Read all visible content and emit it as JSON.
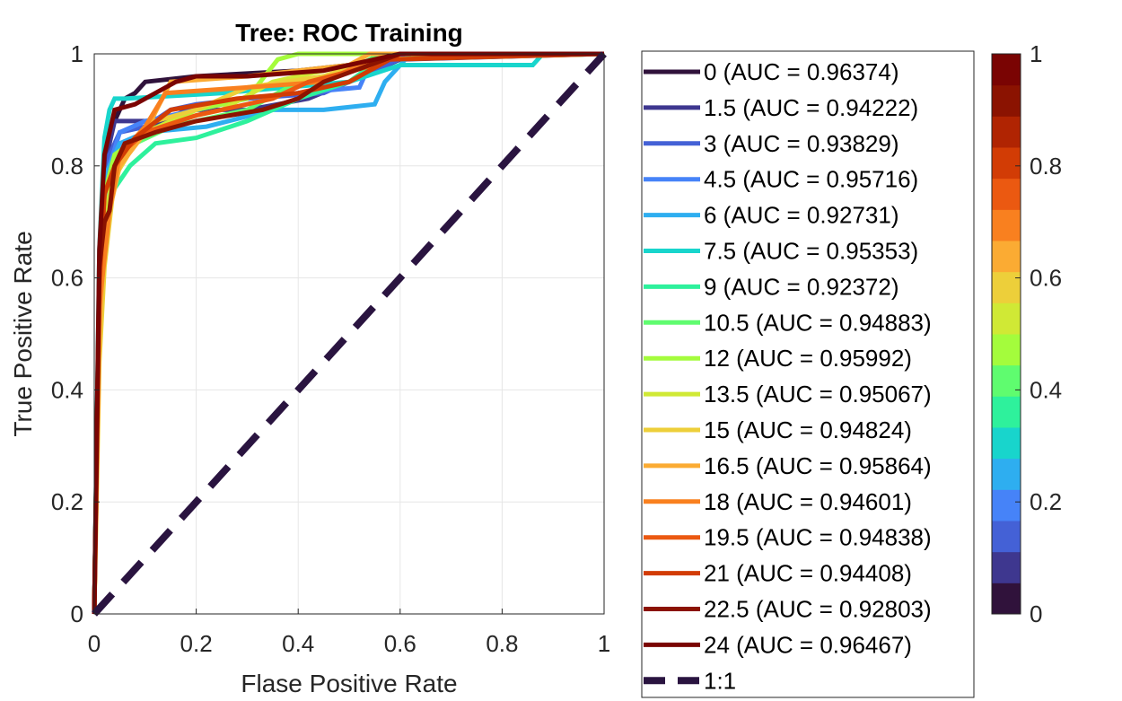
{
  "chart_data": {
    "type": "line",
    "title": "Tree: ROC Training",
    "xlabel": "Flase Positive Rate",
    "ylabel": "True Positive Rate",
    "xlim": [
      0,
      1
    ],
    "ylim": [
      0,
      1
    ],
    "xticks": [
      "0",
      "0.2",
      "0.4",
      "0.6",
      "0.8",
      "1"
    ],
    "yticks": [
      "0",
      "0.2",
      "0.4",
      "0.6",
      "0.8",
      "1"
    ],
    "grid": true,
    "legend_position": "right",
    "colorbar": {
      "ticks": [
        "0",
        "0.2",
        "0.4",
        "0.6",
        "0.8",
        "1"
      ],
      "colors": [
        "#30123b",
        "#3e378f",
        "#4461d6",
        "#4683f8",
        "#2eaef0",
        "#18d5cc",
        "#2ef19c",
        "#5ffc6f",
        "#a4fc3c",
        "#d0e935",
        "#edcf3a",
        "#fbab33",
        "#f9801f",
        "#eb5911",
        "#d23c05",
        "#b02402",
        "#8b1301",
        "#7a0403"
      ]
    },
    "series": [
      {
        "name": "0 (AUC = 0.96374)",
        "color": "#30123b",
        "x": [
          0,
          0.01,
          0.02,
          0.04,
          0.06,
          0.08,
          0.1,
          0.2,
          0.4,
          0.6,
          0.8,
          1
        ],
        "y": [
          0,
          0.6,
          0.83,
          0.88,
          0.92,
          0.93,
          0.95,
          0.96,
          0.97,
          0.99,
          1,
          1
        ]
      },
      {
        "name": "1.5 (AUC = 0.94222)",
        "color": "#3e378f",
        "x": [
          0,
          0.01,
          0.02,
          0.04,
          0.1,
          0.12,
          0.18,
          0.3,
          0.42,
          0.5,
          0.6,
          1
        ],
        "y": [
          0,
          0.55,
          0.8,
          0.88,
          0.88,
          0.87,
          0.9,
          0.9,
          0.92,
          0.95,
          0.99,
          1
        ]
      },
      {
        "name": "3 (AUC = 0.93829)",
        "color": "#4461d6",
        "x": [
          0,
          0.01,
          0.03,
          0.05,
          0.1,
          0.15,
          0.2,
          0.3,
          0.45,
          0.55,
          0.62,
          1
        ],
        "y": [
          0,
          0.6,
          0.82,
          0.86,
          0.87,
          0.9,
          0.91,
          0.92,
          0.93,
          0.97,
          1,
          1
        ]
      },
      {
        "name": "4.5 (AUC = 0.95716)",
        "color": "#4683f8",
        "x": [
          0,
          0.01,
          0.03,
          0.05,
          0.1,
          0.2,
          0.3,
          0.4,
          0.52,
          0.54,
          0.56,
          1
        ],
        "y": [
          0,
          0.62,
          0.8,
          0.86,
          0.88,
          0.9,
          0.92,
          0.93,
          0.94,
          0.98,
          1,
          1
        ]
      },
      {
        "name": "6 (AUC = 0.92731)",
        "color": "#2eaef0",
        "x": [
          0,
          0.01,
          0.02,
          0.05,
          0.1,
          0.22,
          0.35,
          0.45,
          0.55,
          0.57,
          0.62,
          1
        ],
        "y": [
          0,
          0.6,
          0.78,
          0.84,
          0.86,
          0.87,
          0.9,
          0.9,
          0.91,
          0.95,
          1,
          1
        ]
      },
      {
        "name": "7.5 (AUC = 0.95353)",
        "color": "#18d5cc",
        "x": [
          0,
          0.01,
          0.02,
          0.03,
          0.04,
          0.06,
          0.25,
          0.5,
          0.6,
          0.86,
          0.88,
          1
        ],
        "y": [
          0,
          0.65,
          0.85,
          0.9,
          0.92,
          0.92,
          0.93,
          0.95,
          0.98,
          0.98,
          1,
          1
        ]
      },
      {
        "name": "9 (AUC = 0.92372)",
        "color": "#2ef19c",
        "x": [
          0,
          0.01,
          0.02,
          0.04,
          0.07,
          0.12,
          0.2,
          0.3,
          0.4,
          0.5,
          0.56,
          1
        ],
        "y": [
          0,
          0.62,
          0.72,
          0.76,
          0.8,
          0.84,
          0.85,
          0.88,
          0.92,
          0.95,
          0.99,
          1
        ]
      },
      {
        "name": "10.5 (AUC = 0.94883)",
        "color": "#5ffc6f",
        "x": [
          0,
          0.01,
          0.02,
          0.04,
          0.08,
          0.15,
          0.3,
          0.4,
          0.5,
          0.56,
          1
        ],
        "y": [
          0,
          0.6,
          0.75,
          0.8,
          0.84,
          0.87,
          0.9,
          0.95,
          0.97,
          1,
          1
        ]
      },
      {
        "name": "12 (AUC = 0.95992)",
        "color": "#a4fc3c",
        "x": [
          0,
          0.01,
          0.02,
          0.04,
          0.1,
          0.2,
          0.3,
          0.36,
          0.4,
          0.5,
          1
        ],
        "y": [
          0,
          0.58,
          0.75,
          0.82,
          0.86,
          0.9,
          0.92,
          0.99,
          1,
          1,
          1
        ]
      },
      {
        "name": "13.5 (AUC = 0.95067)",
        "color": "#d0e935",
        "x": [
          0,
          0.01,
          0.02,
          0.04,
          0.08,
          0.15,
          0.25,
          0.35,
          0.45,
          0.55,
          1
        ],
        "y": [
          0,
          0.55,
          0.7,
          0.8,
          0.85,
          0.88,
          0.9,
          0.95,
          0.97,
          0.99,
          1
        ]
      },
      {
        "name": "15 (AUC = 0.94824)",
        "color": "#edcf3a",
        "x": [
          0,
          0.01,
          0.02,
          0.04,
          0.08,
          0.12,
          0.2,
          0.3,
          0.45,
          0.55,
          1
        ],
        "y": [
          0,
          0.45,
          0.62,
          0.78,
          0.84,
          0.88,
          0.9,
          0.94,
          0.96,
          0.99,
          1
        ]
      },
      {
        "name": "16.5 (AUC = 0.95864)",
        "color": "#fbab33",
        "x": [
          0,
          0.01,
          0.02,
          0.05,
          0.1,
          0.15,
          0.3,
          0.4,
          0.5,
          0.54,
          1
        ],
        "y": [
          0,
          0.5,
          0.68,
          0.8,
          0.86,
          0.95,
          0.96,
          0.97,
          0.98,
          1,
          1
        ]
      },
      {
        "name": "18 (AUC = 0.94601)",
        "color": "#f9801f",
        "x": [
          0,
          0.01,
          0.03,
          0.05,
          0.1,
          0.14,
          0.3,
          0.45,
          0.52,
          0.6,
          1
        ],
        "y": [
          0,
          0.55,
          0.72,
          0.82,
          0.87,
          0.93,
          0.94,
          0.95,
          0.98,
          1,
          1
        ]
      },
      {
        "name": "19.5 (AUC = 0.94838)",
        "color": "#eb5911",
        "x": [
          0,
          0.01,
          0.02,
          0.05,
          0.1,
          0.2,
          0.35,
          0.42,
          0.55,
          0.6,
          1
        ],
        "y": [
          0,
          0.58,
          0.75,
          0.82,
          0.86,
          0.89,
          0.92,
          0.95,
          0.98,
          1,
          1
        ]
      },
      {
        "name": "21 (AUC = 0.94408)",
        "color": "#d23c05",
        "x": [
          0,
          0.01,
          0.02,
          0.04,
          0.08,
          0.15,
          0.28,
          0.4,
          0.5,
          0.58,
          1
        ],
        "y": [
          0,
          0.6,
          0.75,
          0.8,
          0.85,
          0.9,
          0.92,
          0.93,
          0.95,
          0.99,
          1
        ]
      },
      {
        "name": "22.5 (AUC = 0.92803)",
        "color": "#8b1301",
        "x": [
          0,
          0.01,
          0.02,
          0.03,
          0.04,
          0.06,
          0.12,
          0.2,
          0.33,
          0.4,
          0.45,
          0.54,
          0.6,
          1
        ],
        "y": [
          0,
          0.62,
          0.7,
          0.72,
          0.8,
          0.84,
          0.86,
          0.88,
          0.9,
          0.92,
          0.95,
          0.98,
          1,
          1
        ]
      },
      {
        "name": "24 (AUC = 0.96467)",
        "color": "#7a0403",
        "x": [
          0,
          0.01,
          0.02,
          0.04,
          0.08,
          0.16,
          0.2,
          0.3,
          0.45,
          0.55,
          0.6,
          1
        ],
        "y": [
          0,
          0.65,
          0.82,
          0.9,
          0.91,
          0.95,
          0.96,
          0.96,
          0.97,
          0.99,
          1,
          1
        ]
      }
    ],
    "reference_line": {
      "name": "1:1",
      "color": "#2a1440",
      "x": [
        0,
        1
      ],
      "y": [
        0,
        1
      ],
      "style": "dashed"
    }
  }
}
